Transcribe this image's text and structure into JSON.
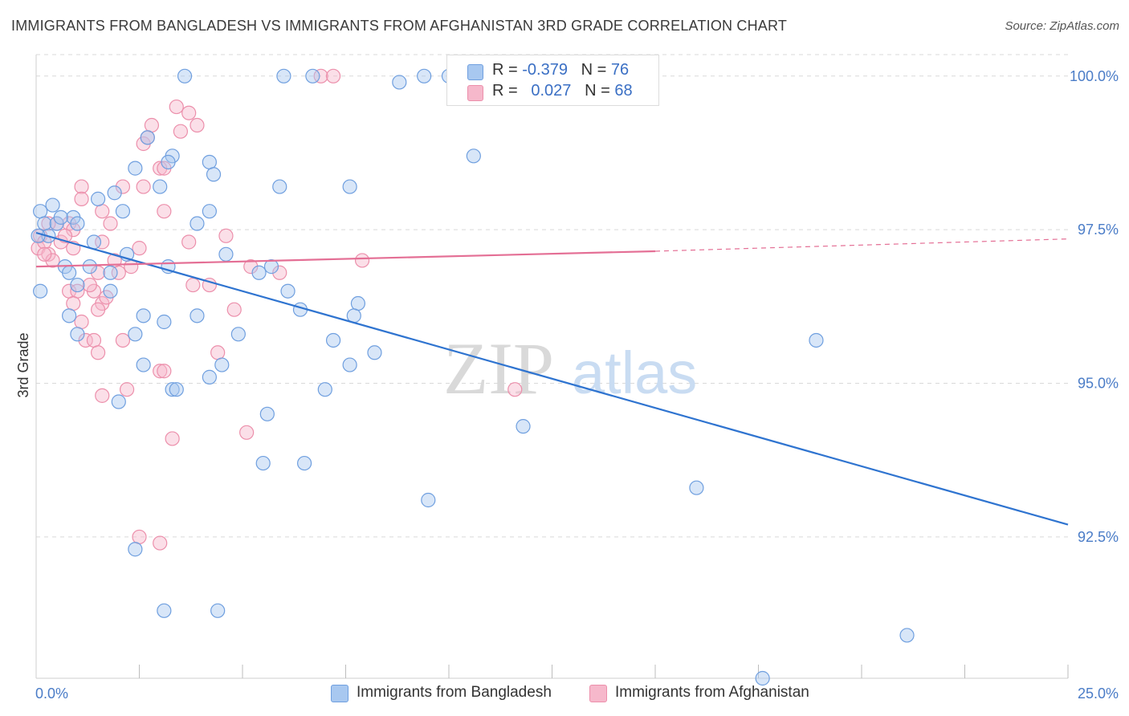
{
  "title": "IMMIGRANTS FROM BANGLADESH VS IMMIGRANTS FROM AFGHANISTAN 3RD GRADE CORRELATION CHART",
  "source": "Source: ZipAtlas.com",
  "watermark": {
    "zip": "ZIP",
    "atlas": "atlas"
  },
  "colors": {
    "blue_fill": "#a8c8f0",
    "blue_stroke": "#6f9fdf",
    "blue_line": "#2f74d0",
    "pink_fill": "#f6b8cb",
    "pink_stroke": "#ec8fab",
    "pink_line": "#e46f95",
    "tick_text": "#4a7cc7",
    "grid": "#d9d9d9"
  },
  "legend": {
    "rows": [
      {
        "r_label": "R = ",
        "r_value": "-0.379",
        "n_label": "N = ",
        "n_value": "76"
      },
      {
        "r_label": "R = ",
        "r_value": "0.027",
        "n_label": "N = ",
        "n_value": "68"
      }
    ]
  },
  "chart_data": {
    "type": "scatter",
    "title": "IMMIGRANTS FROM BANGLADESH VS IMMIGRANTS FROM AFGHANISTAN 3RD GRADE CORRELATION CHART",
    "xlabel": "",
    "ylabel": "3rd Grade",
    "xlim": [
      0,
      25
    ],
    "ylim": [
      90.2,
      100.35
    ],
    "x_tick_labels": [
      "0.0%",
      "25.0%"
    ],
    "y_ticks": [
      92.5,
      95.0,
      97.5,
      100.0
    ],
    "y_tick_labels": [
      "92.5%",
      "95.0%",
      "97.5%",
      "100.0%"
    ],
    "grid": "horizontal dashed",
    "legend_position": "top-center",
    "series": [
      {
        "name": "Immigrants from Bangladesh",
        "color": "blue",
        "trend": {
          "x0": 0,
          "y0": 97.45,
          "x1": 25,
          "y1": 92.7,
          "dashed_from": null
        },
        "points": [
          [
            3.6,
            100.0
          ],
          [
            6.0,
            100.0
          ],
          [
            6.7,
            100.0
          ],
          [
            8.8,
            99.9
          ],
          [
            9.4,
            100.0
          ],
          [
            10.0,
            100.0
          ],
          [
            2.7,
            99.0
          ],
          [
            3.3,
            98.7
          ],
          [
            3.2,
            98.6
          ],
          [
            4.2,
            98.6
          ],
          [
            4.3,
            98.4
          ],
          [
            2.4,
            98.5
          ],
          [
            10.6,
            98.7
          ],
          [
            1.9,
            98.1
          ],
          [
            1.5,
            98.0
          ],
          [
            3.0,
            98.2
          ],
          [
            5.9,
            98.2
          ],
          [
            7.6,
            98.2
          ],
          [
            0.1,
            97.8
          ],
          [
            0.4,
            97.9
          ],
          [
            0.9,
            97.7
          ],
          [
            1.0,
            97.6
          ],
          [
            2.1,
            97.8
          ],
          [
            3.9,
            97.6
          ],
          [
            4.2,
            97.8
          ],
          [
            0.2,
            97.6
          ],
          [
            0.5,
            97.6
          ],
          [
            0.3,
            97.4
          ],
          [
            0.05,
            97.4
          ],
          [
            1.4,
            97.3
          ],
          [
            2.2,
            97.1
          ],
          [
            4.6,
            97.1
          ],
          [
            0.7,
            96.9
          ],
          [
            1.3,
            96.9
          ],
          [
            0.8,
            96.8
          ],
          [
            1.8,
            96.8
          ],
          [
            3.2,
            96.9
          ],
          [
            5.4,
            96.8
          ],
          [
            5.7,
            96.9
          ],
          [
            6.1,
            96.5
          ],
          [
            1.0,
            96.6
          ],
          [
            1.8,
            96.5
          ],
          [
            0.1,
            96.5
          ],
          [
            0.8,
            96.1
          ],
          [
            2.6,
            96.1
          ],
          [
            3.1,
            96.0
          ],
          [
            3.9,
            96.1
          ],
          [
            7.8,
            96.3
          ],
          [
            7.7,
            96.1
          ],
          [
            1.0,
            95.8
          ],
          [
            2.4,
            95.8
          ],
          [
            4.9,
            95.8
          ],
          [
            7.2,
            95.7
          ],
          [
            7.6,
            95.3
          ],
          [
            8.2,
            95.5
          ],
          [
            18.9,
            95.7
          ],
          [
            2.6,
            95.3
          ],
          [
            4.2,
            95.1
          ],
          [
            4.5,
            95.3
          ],
          [
            3.3,
            94.9
          ],
          [
            3.4,
            94.9
          ],
          [
            7.0,
            94.9
          ],
          [
            2.0,
            94.7
          ],
          [
            5.6,
            94.5
          ],
          [
            11.8,
            94.3
          ],
          [
            5.5,
            93.7
          ],
          [
            6.5,
            93.7
          ],
          [
            9.5,
            93.1
          ],
          [
            16.0,
            93.3
          ],
          [
            2.4,
            92.3
          ],
          [
            3.1,
            91.3
          ],
          [
            4.4,
            91.3
          ],
          [
            21.1,
            90.9
          ],
          [
            17.6,
            90.2
          ],
          [
            0.6,
            97.7
          ],
          [
            6.4,
            96.2
          ]
        ]
      },
      {
        "name": "Immigrants from Afghanistan",
        "color": "pink",
        "trend": {
          "x0": 0,
          "y0": 96.9,
          "x1": 15,
          "y1": 97.15,
          "dashed_from": 15,
          "x2": 25,
          "y2": 97.35
        },
        "points": [
          [
            6.9,
            100.0
          ],
          [
            7.2,
            100.0
          ],
          [
            3.4,
            99.5
          ],
          [
            3.7,
            99.4
          ],
          [
            3.9,
            99.2
          ],
          [
            3.5,
            99.1
          ],
          [
            2.6,
            98.9
          ],
          [
            2.7,
            99.0
          ],
          [
            2.8,
            99.2
          ],
          [
            3.0,
            98.5
          ],
          [
            3.1,
            98.5
          ],
          [
            1.1,
            98.2
          ],
          [
            2.1,
            98.2
          ],
          [
            2.6,
            98.2
          ],
          [
            1.1,
            98.0
          ],
          [
            1.6,
            97.8
          ],
          [
            3.1,
            97.8
          ],
          [
            0.8,
            97.6
          ],
          [
            0.9,
            97.5
          ],
          [
            0.5,
            97.6
          ],
          [
            0.3,
            97.6
          ],
          [
            0.1,
            97.4
          ],
          [
            0.05,
            97.2
          ],
          [
            0.2,
            97.3
          ],
          [
            0.3,
            97.1
          ],
          [
            0.6,
            97.3
          ],
          [
            0.9,
            97.2
          ],
          [
            1.6,
            97.3
          ],
          [
            2.5,
            97.2
          ],
          [
            3.7,
            97.3
          ],
          [
            4.6,
            97.4
          ],
          [
            1.9,
            97.0
          ],
          [
            1.5,
            96.8
          ],
          [
            2.0,
            96.8
          ],
          [
            5.2,
            96.9
          ],
          [
            5.9,
            96.8
          ],
          [
            7.9,
            97.0
          ],
          [
            3.8,
            96.6
          ],
          [
            4.2,
            96.6
          ],
          [
            0.8,
            96.5
          ],
          [
            1.0,
            96.5
          ],
          [
            1.4,
            96.5
          ],
          [
            0.9,
            96.3
          ],
          [
            1.6,
            96.3
          ],
          [
            1.5,
            96.2
          ],
          [
            4.8,
            96.2
          ],
          [
            1.1,
            96.0
          ],
          [
            1.2,
            95.7
          ],
          [
            1.4,
            95.7
          ],
          [
            2.1,
            95.7
          ],
          [
            1.5,
            95.5
          ],
          [
            4.4,
            95.5
          ],
          [
            3.0,
            95.2
          ],
          [
            3.1,
            95.2
          ],
          [
            2.2,
            94.9
          ],
          [
            1.6,
            94.8
          ],
          [
            11.6,
            94.9
          ],
          [
            5.1,
            94.2
          ],
          [
            3.3,
            94.1
          ],
          [
            2.5,
            92.5
          ],
          [
            3.0,
            92.4
          ],
          [
            1.3,
            96.6
          ],
          [
            0.4,
            97.0
          ],
          [
            0.7,
            97.4
          ],
          [
            1.7,
            96.4
          ],
          [
            2.3,
            96.9
          ],
          [
            0.2,
            97.1
          ],
          [
            1.8,
            97.6
          ]
        ]
      }
    ]
  },
  "bottom_legend": [
    {
      "label": "Immigrants from Bangladesh"
    },
    {
      "label": "Immigrants from Afghanistan"
    }
  ]
}
